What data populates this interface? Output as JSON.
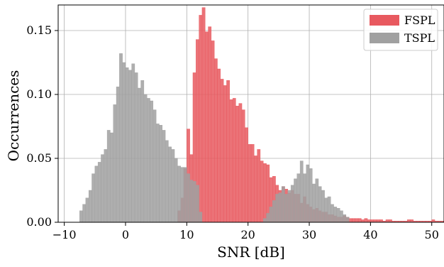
{
  "chart_data": {
    "type": "bar",
    "title": "",
    "xlabel": "SNR [dB]",
    "ylabel": "Occurrences",
    "xlim": [
      -11,
      52
    ],
    "ylim": [
      0,
      0.17
    ],
    "xticks": [
      -10,
      0,
      10,
      20,
      30,
      40,
      50
    ],
    "xtick_labels": [
      "−10",
      "0",
      "10",
      "20",
      "30",
      "40",
      "50"
    ],
    "yticks": [
      0.0,
      0.05,
      0.1,
      0.15
    ],
    "ytick_labels": [
      "0.00",
      "0.05",
      "0.10",
      "0.15"
    ],
    "grid": true,
    "legend_position": "top-right",
    "bin_width": 0.5,
    "series": [
      {
        "name": "FSPL",
        "color": "#e8595f",
        "bins_start": 8.5,
        "values": [
          0.009,
          0.019,
          0.042,
          0.073,
          0.053,
          0.117,
          0.143,
          0.162,
          0.168,
          0.149,
          0.153,
          0.142,
          0.128,
          0.12,
          0.112,
          0.107,
          0.111,
          0.096,
          0.097,
          0.091,
          0.093,
          0.088,
          0.074,
          0.061,
          0.061,
          0.052,
          0.057,
          0.048,
          0.046,
          0.045,
          0.035,
          0.036,
          0.029,
          0.025,
          0.028,
          0.026,
          0.023,
          0.025,
          0.022,
          0.022,
          0.015,
          0.02,
          0.014,
          0.012,
          0.01,
          0.011,
          0.009,
          0.008,
          0.008,
          0.006,
          0.006,
          0.005,
          0.004,
          0.004,
          0.005,
          0.004,
          0.003,
          0.003,
          0.003,
          0.003,
          0.002,
          0.003,
          0.002,
          0.002,
          0.002,
          0.002,
          0.002,
          0.001,
          0.002,
          0.002,
          0.001,
          0.001,
          0.001,
          0.001,
          0.001,
          0.002,
          0.002,
          0.001,
          0.001,
          0.001,
          0.001,
          0.001,
          0.001,
          0.002,
          0.001,
          0.001,
          0.001,
          0.001,
          0.002,
          0.001,
          0.001,
          0.001,
          0.001,
          0.001,
          0.001,
          0.001,
          0.001,
          0.001,
          0.001,
          0.001,
          0.001,
          0.001,
          0.001
        ]
      },
      {
        "name": "TSPL",
        "color": "#a0a0a0",
        "bins_start": -7.5,
        "values": [
          0.009,
          0.014,
          0.019,
          0.025,
          0.038,
          0.044,
          0.047,
          0.053,
          0.057,
          0.072,
          0.07,
          0.092,
          0.106,
          0.132,
          0.125,
          0.121,
          0.119,
          0.124,
          0.117,
          0.105,
          0.111,
          0.1,
          0.097,
          0.095,
          0.088,
          0.077,
          0.076,
          0.072,
          0.064,
          0.059,
          0.057,
          0.05,
          0.044,
          0.043,
          0.043,
          0.038,
          0.033,
          0.032,
          0.029,
          0.008,
          0.0,
          0.0,
          0.0,
          0.0,
          0.0,
          0.0,
          0.0,
          0.0,
          0.0,
          0.0,
          0.0,
          0.0,
          0.0,
          0.0,
          0.0,
          0.0,
          0.0,
          0.0,
          0.0,
          0.0,
          0.003,
          0.007,
          0.012,
          0.017,
          0.022,
          0.023,
          0.028,
          0.022,
          0.025,
          0.029,
          0.034,
          0.038,
          0.048,
          0.038,
          0.045,
          0.042,
          0.03,
          0.034,
          0.028,
          0.025,
          0.019,
          0.02,
          0.014,
          0.012,
          0.011,
          0.009,
          0.006,
          0.004
        ]
      }
    ]
  }
}
